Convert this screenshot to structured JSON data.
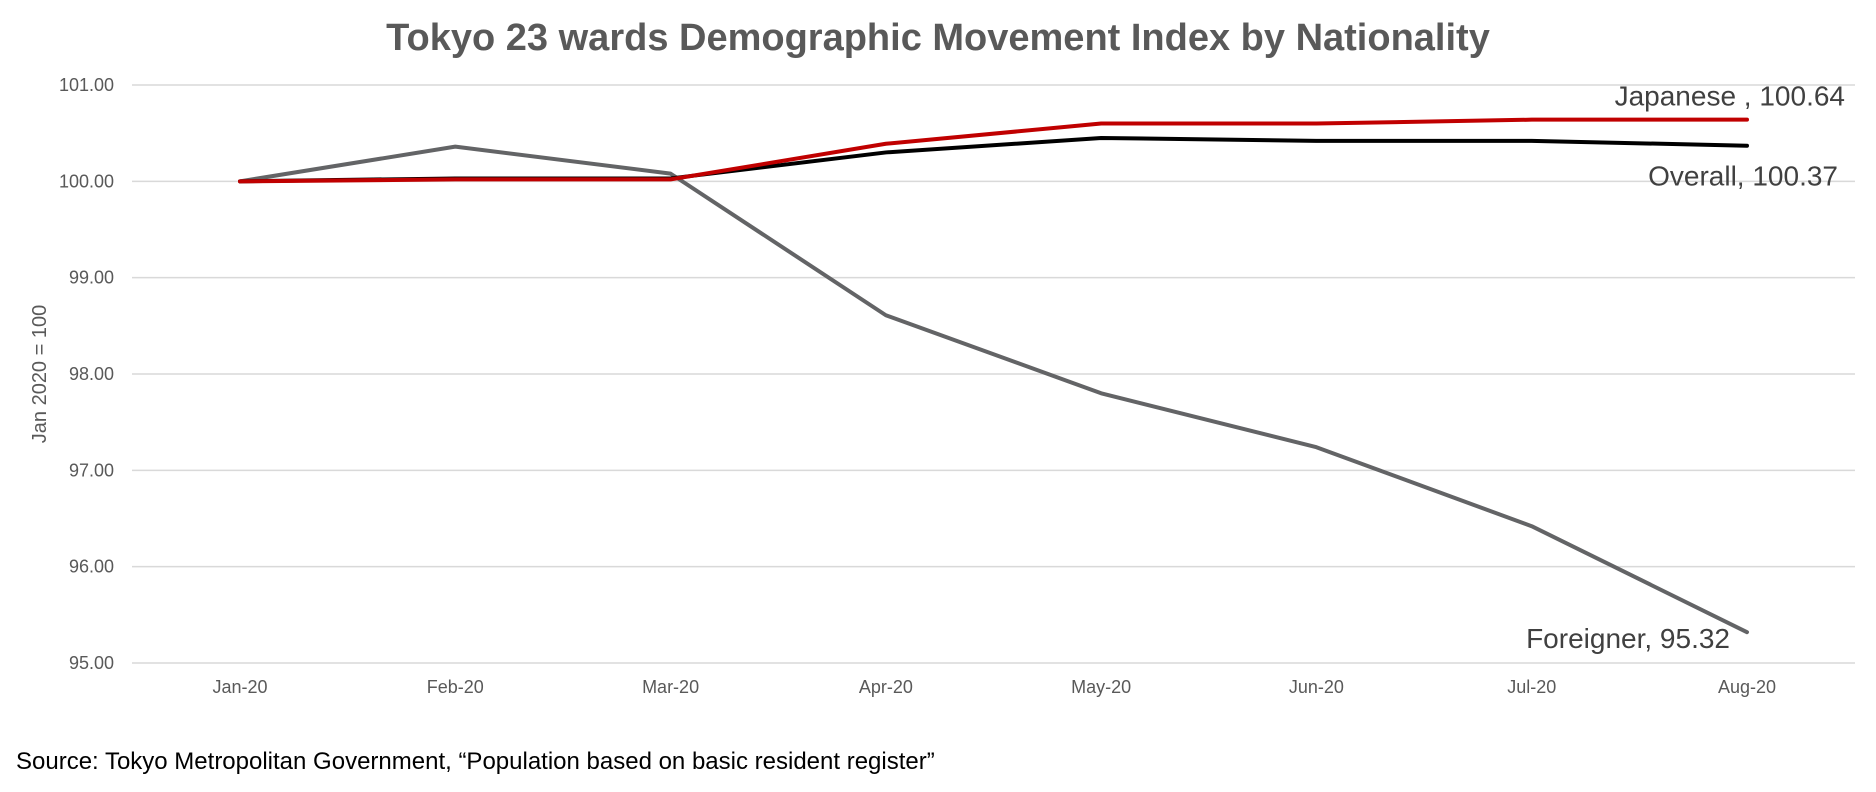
{
  "chart_data": {
    "type": "line",
    "title": "Tokyo 23 wards Demographic Movement Index by Nationality",
    "ylabel": "Jan 2020 = 100",
    "xlabel": "",
    "categories": [
      "Jan-20",
      "Feb-20",
      "Mar-20",
      "Apr-20",
      "May-20",
      "Jun-20",
      "Jul-20",
      "Aug-20"
    ],
    "ylim": [
      95,
      101
    ],
    "yticks": [
      "95.00",
      "96.00",
      "97.00",
      "98.00",
      "99.00",
      "100.00",
      "101.00"
    ],
    "grid": true,
    "legend": "none",
    "series": [
      {
        "name": "Foreigner",
        "color": "#636466",
        "values": [
          100.0,
          100.36,
          100.08,
          98.61,
          97.8,
          97.24,
          96.42,
          95.32
        ],
        "end_label": "Foreigner, 95.32"
      },
      {
        "name": "Overall",
        "color": "#000000",
        "values": [
          100.0,
          100.03,
          100.03,
          100.3,
          100.45,
          100.42,
          100.42,
          100.37
        ],
        "end_label": "Overall, 100.37"
      },
      {
        "name": "Japanese",
        "color": "#c00000",
        "values": [
          100.0,
          100.02,
          100.02,
          100.39,
          100.6,
          100.6,
          100.64,
          100.64
        ],
        "end_label": "Japanese , 100.64"
      }
    ]
  },
  "source": "Source: Tokyo Metropolitan Government, “Population based on basic resident register”"
}
